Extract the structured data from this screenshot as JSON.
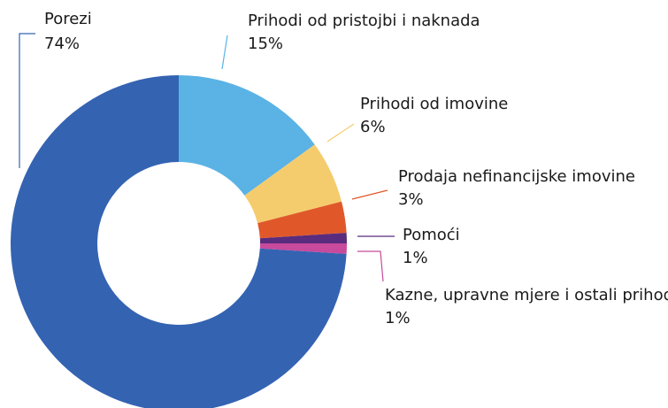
{
  "chart_data": {
    "type": "donut",
    "categories": [
      "Prihodi od pristojbi i naknada",
      "Prihodi od imovine",
      "Prodaja nefinancijske imovine",
      "Pomoći",
      "Kazne, upravne mjere i ostali prihodi",
      "Porezi"
    ],
    "values": [
      15,
      6,
      3,
      1,
      1,
      74
    ],
    "value_labels": [
      "15%",
      "6%",
      "3%",
      "1%",
      "1%",
      "74%"
    ],
    "colors": [
      "#5ab3e4",
      "#f5cc6d",
      "#e0582a",
      "#5a2c7d",
      "#c74a9c",
      "#3463b2"
    ]
  }
}
